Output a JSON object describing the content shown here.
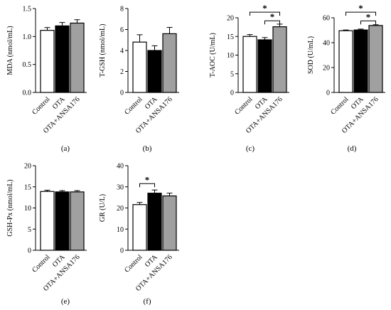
{
  "chart_data": [
    {
      "type": "bar",
      "panel_label": "(a)",
      "ylabel": "MDA (nmol/mL)",
      "categories": [
        "Control",
        "OTA",
        "OTA+ANSA176"
      ],
      "values": [
        1.11,
        1.19,
        1.24
      ],
      "errors": [
        0.05,
        0.06,
        0.06
      ],
      "fills": [
        "#ffffff",
        "#000000",
        "#a0a0a0"
      ],
      "ylim": [
        0,
        1.5
      ],
      "yticks": [
        "0.0",
        "0.5",
        "1.0",
        "1.5"
      ],
      "ytick_values": [
        0,
        0.5,
        1.0,
        1.5
      ],
      "significance": []
    },
    {
      "type": "bar",
      "panel_label": "(b)",
      "ylabel": "T-GSH (nmol/mL)",
      "categories": [
        "Control",
        "OTA",
        "OTA+ANSA176"
      ],
      "values": [
        4.8,
        4.0,
        5.6
      ],
      "errors": [
        0.7,
        0.45,
        0.6
      ],
      "fills": [
        "#ffffff",
        "#000000",
        "#a0a0a0"
      ],
      "ylim": [
        0,
        8
      ],
      "yticks": [
        "0",
        "2",
        "4",
        "6",
        "8"
      ],
      "ytick_values": [
        0,
        2,
        4,
        6,
        8
      ],
      "significance": []
    },
    {
      "type": "bar",
      "panel_label": "(c)",
      "ylabel": "T-AOC (U/mL)",
      "categories": [
        "Control",
        "OTA",
        "OTA+ANSA176"
      ],
      "values": [
        15.0,
        14.1,
        17.6
      ],
      "errors": [
        0.5,
        0.6,
        0.7
      ],
      "fills": [
        "#ffffff",
        "#000000",
        "#a0a0a0"
      ],
      "ylim": [
        0,
        20
      ],
      "yticks": [
        "0",
        "5",
        "10",
        "15",
        "20"
      ],
      "ytick_values": [
        0,
        5,
        10,
        15,
        20
      ],
      "significance": [
        {
          "from": 0,
          "to": 2,
          "y": 21.5,
          "label": "*"
        },
        {
          "from": 1,
          "to": 2,
          "y": 19.2,
          "label": "*"
        }
      ]
    },
    {
      "type": "bar",
      "panel_label": "(d)",
      "ylabel": "SOD (U/mL)",
      "categories": [
        "Control",
        "OTA",
        "OTA+ANSA176"
      ],
      "values": [
        49.6,
        50.2,
        53.8
      ],
      "errors": [
        0.6,
        0.7,
        0.6
      ],
      "fills": [
        "#ffffff",
        "#000000",
        "#a0a0a0"
      ],
      "ylim": [
        0,
        60
      ],
      "yticks": [
        "0",
        "20",
        "40",
        "60"
      ],
      "ytick_values": [
        0,
        20,
        40,
        60
      ],
      "significance": [
        {
          "from": 0,
          "to": 2,
          "y": 64.5,
          "label": "*"
        },
        {
          "from": 1,
          "to": 2,
          "y": 57.5,
          "label": "*"
        }
      ]
    },
    {
      "type": "bar",
      "panel_label": "(e)",
      "ylabel": "GSH-Px (nmol/mL)",
      "categories": [
        "Control",
        "OTA",
        "OTA+ANSA176"
      ],
      "values": [
        13.9,
        13.8,
        13.8
      ],
      "errors": [
        0.3,
        0.3,
        0.3
      ],
      "fills": [
        "#ffffff",
        "#000000",
        "#a0a0a0"
      ],
      "ylim": [
        0,
        20
      ],
      "yticks": [
        "0",
        "5",
        "10",
        "15",
        "20"
      ],
      "ytick_values": [
        0,
        5,
        10,
        15,
        20
      ],
      "significance": []
    },
    {
      "type": "bar",
      "panel_label": "(f)",
      "ylabel": "GR (U/L)",
      "categories": [
        "Control",
        "OTA",
        "OTA+ANSA176"
      ],
      "values": [
        21.6,
        27.0,
        25.7
      ],
      "errors": [
        1.0,
        1.5,
        1.3
      ],
      "fills": [
        "#ffffff",
        "#000000",
        "#a0a0a0"
      ],
      "ylim": [
        0,
        40
      ],
      "yticks": [
        "0",
        "10",
        "20",
        "30",
        "40"
      ],
      "ytick_values": [
        0,
        10,
        20,
        30,
        40
      ],
      "significance": [
        {
          "from": 0,
          "to": 1,
          "y": 31.5,
          "label": "*"
        }
      ]
    }
  ]
}
